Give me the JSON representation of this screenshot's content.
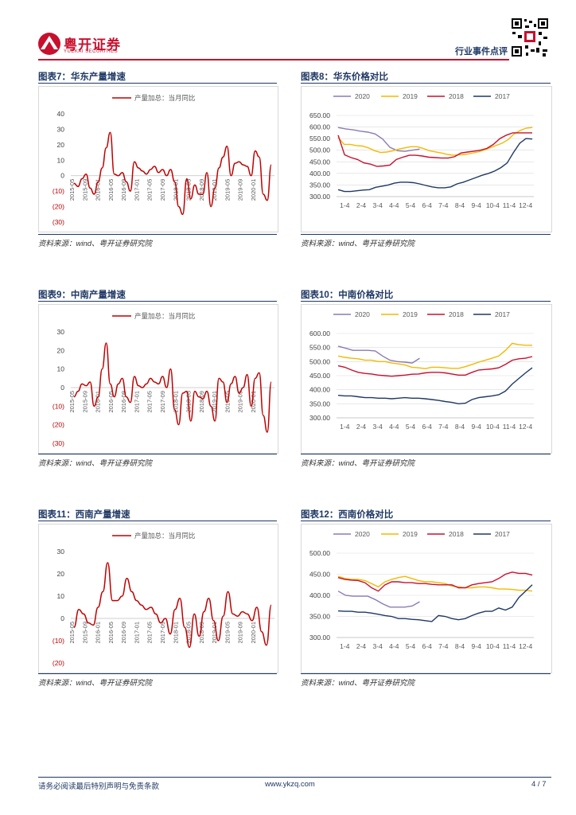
{
  "header": {
    "brand_cn": "粤开证券",
    "brand_en": "YUEKAI SECURITIES",
    "doc_type": "行业事件点评"
  },
  "colors": {
    "red": "#c00000",
    "purple": "#8c7bb5",
    "yellow": "#f5b800",
    "darkred": "#c8102e",
    "navy": "#1f3864"
  },
  "charts": {
    "c7": {
      "title": "图表7：华东产量增速",
      "source": "资料来源：wind、粤开证券研究院"
    },
    "c8": {
      "title": "图表8：华东价格对比",
      "source": "资料来源：wind、粤开证券研究院"
    },
    "c9": {
      "title": "图表9：中南产量增速",
      "source": "资料来源：wind、粤开证券研究院"
    },
    "c10": {
      "title": "图表10：中南价格对比",
      "source": "资料来源：wind、粤开证券研究院"
    },
    "c11": {
      "title": "图表11：西南产量增速",
      "source": "资料来源：wind、粤开证券研究院"
    },
    "c12": {
      "title": "图表12：西南价格对比",
      "source": "资料来源：wind、粤开证券研究院"
    }
  },
  "chart_data": [
    {
      "id": "c7",
      "type": "line",
      "title": "图表7：华东产量增速",
      "legend": [
        "产量加总：当月同比"
      ],
      "ylim": [
        -30,
        40
      ],
      "yticks": [
        "40",
        "30",
        "20",
        "10",
        "0",
        "(10)",
        "(20)",
        "(30)"
      ],
      "x_labels": [
        "2015-05",
        "2015-09",
        "2016-01",
        "2016-05",
        "2016-09",
        "2017-01",
        "2017-05",
        "2017-09",
        "2018-01",
        "2018-05",
        "2018-09",
        "2019-01",
        "2019-05",
        "2019-09",
        "2020-01"
      ],
      "series": [
        {
          "name": "产量加总：当月同比",
          "values": [
            -5,
            -7,
            -2,
            1,
            -8,
            -12,
            -4,
            5,
            18,
            28,
            1,
            0,
            2,
            -4,
            -10,
            9,
            5,
            3,
            1,
            4,
            6,
            2,
            4,
            0,
            4,
            -4,
            -20,
            -25,
            -2,
            -15,
            -6,
            -12,
            -12,
            2,
            -20,
            -8,
            5,
            12,
            19,
            0,
            8,
            9,
            7,
            6,
            0,
            16,
            12,
            -12,
            -16,
            7
          ]
        }
      ]
    },
    {
      "id": "c8",
      "type": "line",
      "title": "图表8：华东价格对比",
      "ylim": [
        300,
        650
      ],
      "yticks": [
        "650.00",
        "600.00",
        "550.00",
        "500.00",
        "450.00",
        "400.00",
        "350.00",
        "300.00"
      ],
      "x_labels": [
        "1-4",
        "2-4",
        "3-4",
        "4-4",
        "5-4",
        "6-4",
        "7-4",
        "8-4",
        "9-4",
        "10-4",
        "11-4",
        "12-4"
      ],
      "series": [
        {
          "name": "2020",
          "color": "purple",
          "values": [
            598,
            592,
            588,
            582,
            578,
            570,
            548,
            512,
            498,
            495,
            500,
            505
          ]
        },
        {
          "name": "2019",
          "color": "yellow",
          "values": [
            555,
            525,
            525,
            520,
            518,
            510,
            498,
            490,
            492,
            497,
            505,
            510,
            515,
            515,
            508,
            498,
            493,
            488,
            482,
            478,
            480,
            482,
            487,
            492,
            500,
            510,
            520,
            530,
            545,
            570,
            585,
            595,
            598
          ]
        },
        {
          "name": "2018",
          "color": "darkred",
          "values": [
            565,
            480,
            468,
            460,
            445,
            440,
            430,
            432,
            436,
            460,
            470,
            478,
            478,
            475,
            470,
            468,
            466,
            466,
            472,
            488,
            492,
            496,
            500,
            508,
            525,
            550,
            565,
            575,
            575,
            575,
            575
          ]
        },
        {
          "name": "2017",
          "color": "navy",
          "values": [
            330,
            322,
            322,
            325,
            328,
            330,
            340,
            345,
            350,
            358,
            362,
            362,
            360,
            355,
            348,
            342,
            338,
            338,
            342,
            355,
            362,
            372,
            382,
            392,
            400,
            410,
            425,
            445,
            490,
            530,
            550,
            548
          ]
        }
      ]
    },
    {
      "id": "c9",
      "type": "line",
      "title": "图表9：中南产量增速",
      "legend": [
        "产量加总：当月同比"
      ],
      "ylim": [
        -30,
        30
      ],
      "yticks": [
        "30",
        "20",
        "10",
        "0",
        "(10)",
        "(20)",
        "(30)"
      ],
      "x_labels": [
        "2015-05",
        "2015-09",
        "2016-01",
        "2016-05",
        "2016-09",
        "2017-01",
        "2017-05",
        "2017-09",
        "2018-01",
        "2018-05",
        "2018-09",
        "2019-01",
        "2019-05",
        "2019-09",
        "2020-01"
      ],
      "series": [
        {
          "name": "产量加总：当月同比",
          "values": [
            -5,
            -2,
            2,
            1,
            3,
            -10,
            -5,
            10,
            24,
            2,
            -5,
            2,
            5,
            -5,
            -8,
            6,
            1,
            0,
            2,
            5,
            3,
            2,
            6,
            0,
            10,
            -12,
            -20,
            -3,
            -2,
            -18,
            -2,
            -5,
            -6,
            -2,
            -10,
            -18,
            5,
            3,
            -8,
            2,
            6,
            -3,
            0,
            7,
            -10,
            5,
            8,
            -15,
            -24,
            3
          ]
        }
      ]
    },
    {
      "id": "c10",
      "type": "line",
      "title": "图表10：中南价格对比",
      "ylim": [
        300,
        600
      ],
      "yticks": [
        "600.00",
        "550.00",
        "500.00",
        "450.00",
        "400.00",
        "350.00",
        "300.00"
      ],
      "x_labels": [
        "1-4",
        "2-4",
        "3-4",
        "4-4",
        "5-4",
        "6-4",
        "7-4",
        "8-4",
        "9-4",
        "10-4",
        "11-4",
        "12-4"
      ],
      "series": [
        {
          "name": "2020",
          "color": "purple",
          "values": [
            555,
            548,
            540,
            540,
            540,
            538,
            520,
            505,
            500,
            498,
            495,
            512
          ]
        },
        {
          "name": "2019",
          "color": "yellow",
          "values": [
            520,
            515,
            512,
            510,
            505,
            505,
            500,
            500,
            495,
            492,
            488,
            480,
            478,
            475,
            480,
            480,
            478,
            476,
            476,
            482,
            490,
            498,
            505,
            512,
            520,
            540,
            565,
            560,
            558,
            558
          ]
        },
        {
          "name": "2018",
          "color": "darkred",
          "values": [
            485,
            480,
            470,
            462,
            458,
            456,
            452,
            450,
            448,
            450,
            452,
            455,
            456,
            460,
            462,
            462,
            460,
            456,
            452,
            452,
            462,
            470,
            472,
            474,
            478,
            490,
            505,
            510,
            512,
            518
          ]
        },
        {
          "name": "2017",
          "color": "navy",
          "values": [
            380,
            378,
            378,
            375,
            372,
            372,
            370,
            370,
            368,
            370,
            372,
            370,
            370,
            368,
            365,
            362,
            358,
            355,
            350,
            352,
            365,
            372,
            375,
            378,
            382,
            395,
            420,
            440,
            460,
            478
          ]
        }
      ]
    },
    {
      "id": "c11",
      "type": "line",
      "title": "图表11：西南产量增速",
      "legend": [
        "产量加总：当月同比"
      ],
      "ylim": [
        -20,
        30
      ],
      "yticks": [
        "30",
        "20",
        "10",
        "0",
        "(10)",
        "(20)"
      ],
      "x_labels": [
        "2015-05",
        "2015-09",
        "2016-01",
        "2016-05",
        "2016-09",
        "2017-01",
        "2017-05",
        "2017-09",
        "2018-01",
        "2018-05",
        "2018-09",
        "2019-01",
        "2019-05",
        "2019-09",
        "2020-01"
      ],
      "series": [
        {
          "name": "产量加总：当月同比",
          "values": [
            -4,
            4,
            2,
            -2,
            -3,
            5,
            12,
            25,
            8,
            8,
            10,
            18,
            12,
            8,
            6,
            4,
            5,
            2,
            -2,
            0,
            -7,
            4,
            9,
            -4,
            -13,
            2,
            -8,
            3,
            9,
            -1,
            -10,
            1,
            12,
            2,
            1,
            3,
            2,
            -1,
            5,
            -6,
            -12,
            6
          ]
        }
      ]
    },
    {
      "id": "c12",
      "type": "line",
      "title": "图表12：西南价格对比",
      "ylim": [
        300,
        500
      ],
      "yticks": [
        "500.00",
        "450.00",
        "400.00",
        "350.00",
        "300.00"
      ],
      "x_labels": [
        "1-4",
        "2-4",
        "3-4",
        "4-4",
        "5-4",
        "6-4",
        "7-4",
        "8-4",
        "9-4",
        "10-4",
        "11-4",
        "12-4"
      ],
      "series": [
        {
          "name": "2020",
          "color": "purple",
          "values": [
            410,
            400,
            398,
            398,
            398,
            390,
            380,
            372,
            372,
            372,
            375,
            385
          ]
        },
        {
          "name": "2019",
          "color": "yellow",
          "values": [
            445,
            440,
            438,
            438,
            435,
            428,
            420,
            432,
            438,
            442,
            445,
            440,
            435,
            432,
            432,
            430,
            428,
            422,
            420,
            418,
            418,
            420,
            420,
            418,
            415,
            415,
            414,
            412,
            412,
            410
          ]
        },
        {
          "name": "2018",
          "color": "darkred",
          "values": [
            442,
            438,
            436,
            435,
            430,
            418,
            410,
            425,
            432,
            432,
            430,
            430,
            428,
            428,
            426,
            425,
            425,
            425,
            418,
            418,
            425,
            428,
            430,
            432,
            440,
            450,
            455,
            452,
            452,
            448
          ]
        },
        {
          "name": "2017",
          "color": "navy",
          "values": [
            363,
            362,
            362,
            360,
            360,
            358,
            355,
            352,
            350,
            345,
            345,
            343,
            342,
            340,
            338,
            352,
            350,
            345,
            342,
            345,
            352,
            358,
            362,
            362,
            370,
            365,
            372,
            395,
            410,
            425
          ]
        }
      ]
    }
  ],
  "footer": {
    "disclaimer": "请务必阅读最后特别声明与免责条款",
    "website": "www.ykzq.com",
    "page": "4 / 7"
  }
}
